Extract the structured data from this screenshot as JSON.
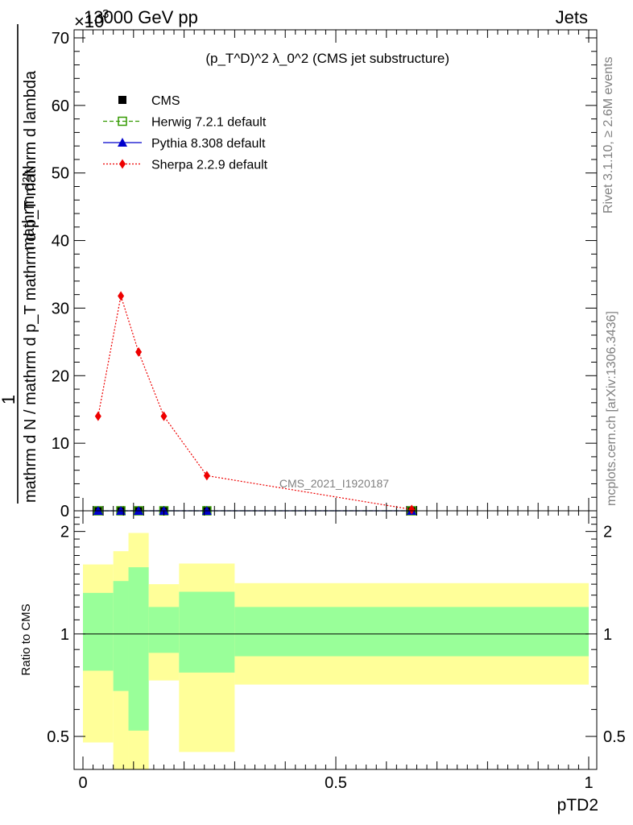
{
  "header": {
    "left": "13000 GeV pp",
    "right": "Jets",
    "exponent_base": "×10",
    "exponent_power": "-3"
  },
  "side_labels": {
    "rivet": "Rivet 3.1.10, ≥ 2.6M events",
    "mcplots": "mcplots.cern.ch [arXiv:1306.3436]"
  },
  "chart_data": {
    "type": "line",
    "title": "(p_T^D)^2 λ_0^2 (CMS jet substructure)",
    "watermark": "CMS_2021_I1920187",
    "xlabel": "pTD2",
    "ylabel_numerator": "mathrm d²N",
    "ylabel_denominator_a": "mathrm d N / mathrm d p_T mathrm d p_T mathrm d lambda",
    "ylabel_one": "1",
    "ratio_ylabel": "Ratio to CMS",
    "xlim": [
      0,
      1
    ],
    "ylim": [
      0,
      70
    ],
    "ratio_ylim": [
      0.4,
      2.3
    ],
    "x_ticks": [
      "0",
      "0.5",
      "1"
    ],
    "y_ticks": [
      "0",
      "10",
      "20",
      "30",
      "40",
      "50",
      "60",
      "70"
    ],
    "ratio_y_ticks": [
      "0.5",
      "1",
      "2"
    ],
    "legend_position": "top-left",
    "series": [
      {
        "name": "CMS",
        "color": "#000000",
        "marker": "square",
        "x": [
          0.03,
          0.075,
          0.11,
          0.16,
          0.245,
          0.65
        ],
        "y": [
          0,
          0,
          0,
          0,
          0,
          0
        ]
      },
      {
        "name": "Herwig 7.2.1 default",
        "color": "#339900",
        "marker": "open-square",
        "line": "dashed",
        "x": [
          0.03,
          0.075,
          0.11,
          0.16,
          0.245,
          0.65
        ],
        "y": [
          0,
          0,
          0,
          0,
          0,
          0
        ]
      },
      {
        "name": "Pythia 8.308 default",
        "color": "#0000cc",
        "marker": "triangle",
        "line": "solid",
        "x": [
          0.03,
          0.075,
          0.11,
          0.16,
          0.245,
          0.65
        ],
        "y": [
          0,
          0,
          0,
          0,
          0,
          0
        ]
      },
      {
        "name": "Sherpa 2.2.9 default",
        "color": "#ee0000",
        "marker": "diamond",
        "line": "dotted",
        "x": [
          0.03,
          0.075,
          0.11,
          0.16,
          0.245,
          0.65
        ],
        "y": [
          14,
          31.8,
          23.5,
          14,
          5.2,
          0.2
        ]
      }
    ],
    "ratio_bands": [
      {
        "xlo": 0.0,
        "xhi": 0.06,
        "yellow": [
          0.48,
          1.6
        ],
        "green": [
          0.78,
          1.32
        ]
      },
      {
        "xlo": 0.06,
        "xhi": 0.09,
        "yellow": [
          0.35,
          1.75
        ],
        "green": [
          0.68,
          1.43
        ]
      },
      {
        "xlo": 0.09,
        "xhi": 0.13,
        "yellow": [
          0.35,
          1.98
        ],
        "green": [
          0.52,
          1.57
        ]
      },
      {
        "xlo": 0.13,
        "xhi": 0.19,
        "yellow": [
          0.73,
          1.4
        ],
        "green": [
          0.88,
          1.2
        ]
      },
      {
        "xlo": 0.19,
        "xhi": 0.3,
        "yellow": [
          0.45,
          1.61
        ],
        "green": [
          0.77,
          1.33
        ]
      },
      {
        "xlo": 0.3,
        "xhi": 1.0,
        "yellow": [
          0.71,
          1.41
        ],
        "green": [
          0.86,
          1.2
        ]
      }
    ]
  },
  "colors": {
    "band_yellow": "#ffff99",
    "band_green": "#99ff99",
    "sherpa": "#ee0000",
    "grey_text": "#808080"
  }
}
